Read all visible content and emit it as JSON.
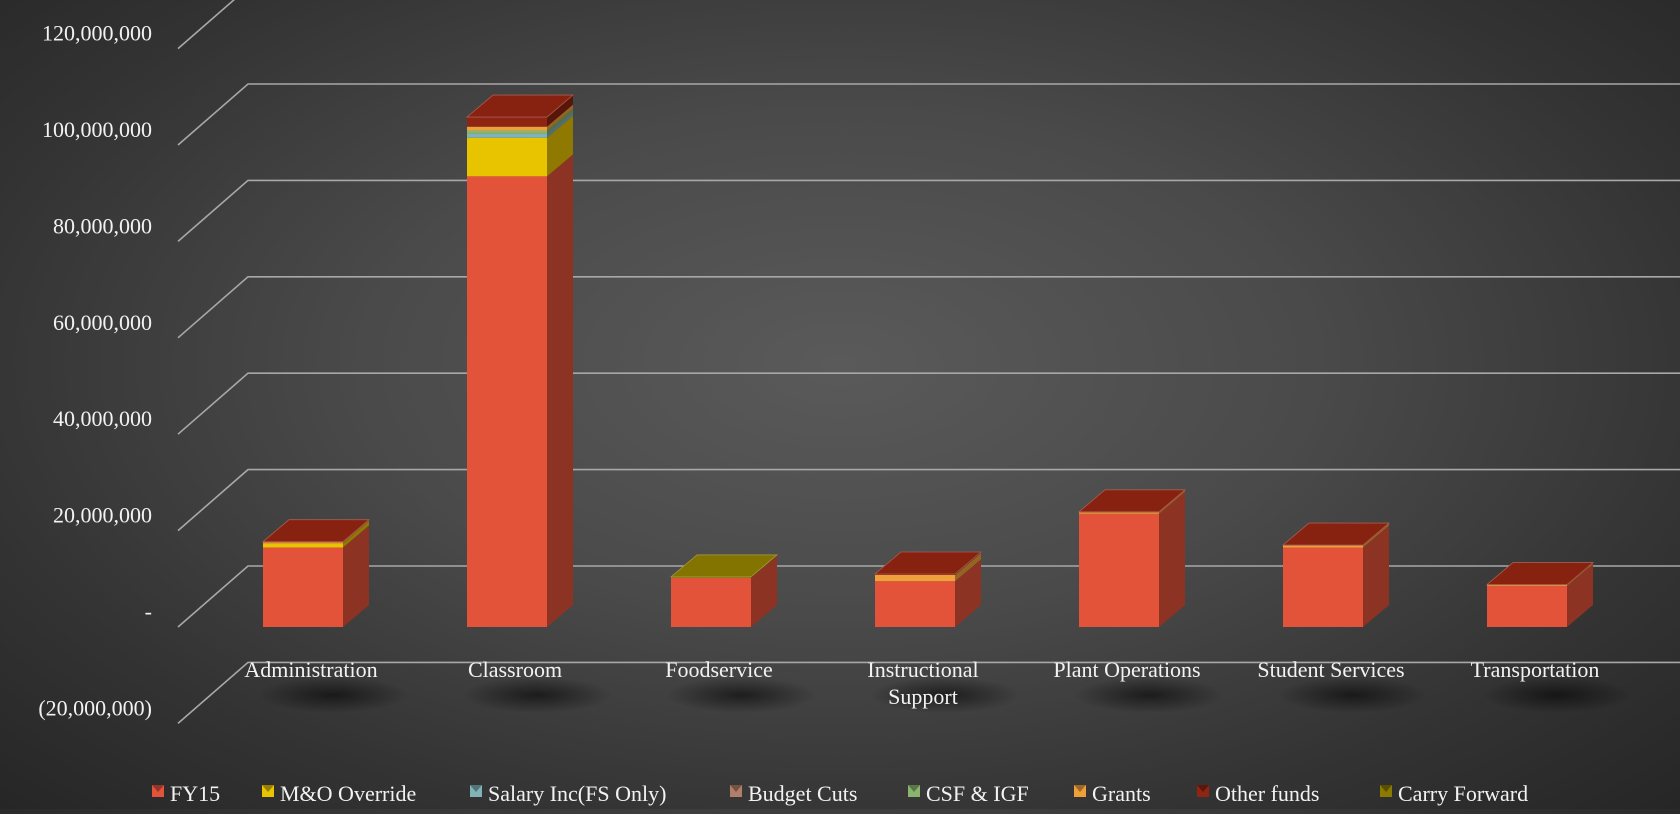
{
  "chart_data": {
    "type": "bar",
    "stacked": true,
    "three_d": true,
    "title": "",
    "xlabel": "",
    "ylabel": "",
    "categories": [
      "Administration",
      "Classroom",
      "Foodservice",
      "Instructional Support",
      "Plant Operations",
      "Student Services",
      "Transportation"
    ],
    "category_lines": [
      [
        "Administration"
      ],
      [
        "Classroom"
      ],
      [
        "Foodservice"
      ],
      [
        "Instructional",
        "Support"
      ],
      [
        "Plant Operations"
      ],
      [
        "Student Services"
      ],
      [
        "Transportation"
      ]
    ],
    "ylim": [
      -20000000,
      120000000
    ],
    "yticks": [
      -20000000,
      0,
      20000000,
      40000000,
      60000000,
      80000000,
      100000000,
      120000000
    ],
    "ytick_labels": [
      "(20,000,000)",
      "-",
      "20,000,000",
      "40,000,000",
      "60,000,000",
      "80,000,000",
      "100,000,000",
      "120,000,000"
    ],
    "grid": true,
    "legend_position": "bottom",
    "series": [
      {
        "name": "FY15",
        "color": "#e2533a",
        "values": [
          16500000,
          93500000,
          10200000,
          9500000,
          23500000,
          16500000,
          8500000
        ]
      },
      {
        "name": "M&O Override",
        "color": "#e8c300",
        "values": [
          800000,
          8000000,
          0,
          0,
          0,
          0,
          0
        ]
      },
      {
        "name": "Salary Inc(FS Only)",
        "color": "#7fb3b8",
        "values": [
          0,
          800000,
          0,
          0,
          0,
          0,
          0
        ]
      },
      {
        "name": "Budget Cuts",
        "color": "#b07f6a",
        "values": [
          0,
          0,
          0,
          0,
          0,
          0,
          0
        ]
      },
      {
        "name": "CSF & IGF",
        "color": "#8ab56e",
        "values": [
          0,
          700000,
          0,
          0,
          0,
          0,
          0
        ]
      },
      {
        "name": "Grants",
        "color": "#f0a03a",
        "values": [
          300000,
          800000,
          0,
          1300000,
          300000,
          400000,
          200000
        ]
      },
      {
        "name": "Other funds",
        "color": "#8e2412",
        "values": [
          100000,
          2000000,
          0,
          200000,
          100000,
          100000,
          100000
        ]
      },
      {
        "name": "Carry Forward",
        "color": "#8a7a00",
        "values": [
          0,
          0,
          200000,
          0,
          0,
          0,
          0
        ]
      }
    ]
  }
}
